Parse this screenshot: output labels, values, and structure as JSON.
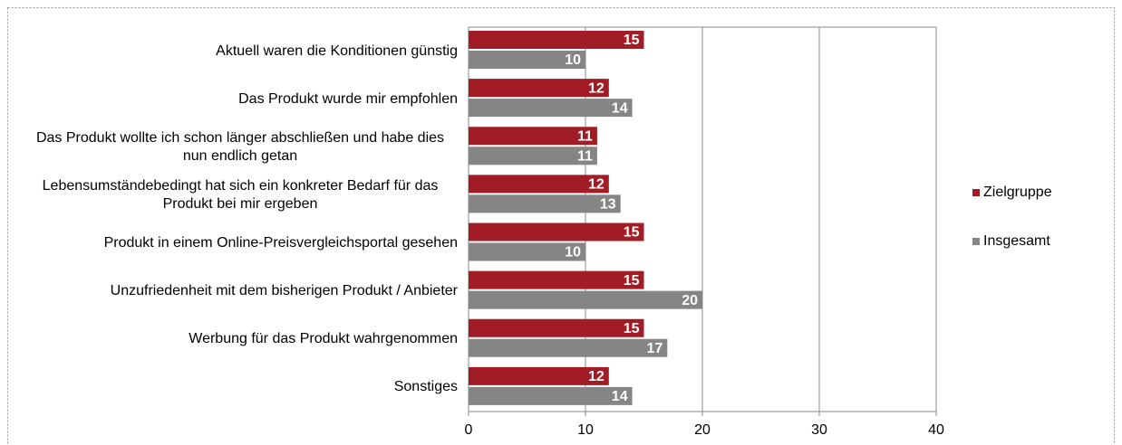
{
  "chart_data": {
    "type": "bar",
    "orientation": "horizontal",
    "categories": [
      "Aktuell waren die Konditionen günstig",
      "Das Produkt wurde mir empfohlen",
      "Das Produkt wollte ich schon länger abschließen und habe dies nun endlich getan",
      "Lebensumständebedingt hat sich ein konkreter Bedarf für das Produkt bei mir ergeben",
      "Produkt in einem Online-Preisvergleichsportal gesehen",
      "Unzufriedenheit mit dem bisherigen Produkt / Anbieter",
      "Werbung für das Produkt wahrgenommen",
      "Sonstiges"
    ],
    "series": [
      {
        "name": "Zielgruppe",
        "color": "#a11c24",
        "values": [
          15,
          12,
          11,
          12,
          15,
          15,
          15,
          12
        ]
      },
      {
        "name": "Insgesamt",
        "color": "#858585",
        "values": [
          10,
          14,
          11,
          13,
          10,
          20,
          17,
          14
        ]
      }
    ],
    "xlim": [
      0,
      40
    ],
    "xticks": [
      0,
      10,
      20,
      30,
      40
    ],
    "grid": true,
    "legend": "right"
  }
}
